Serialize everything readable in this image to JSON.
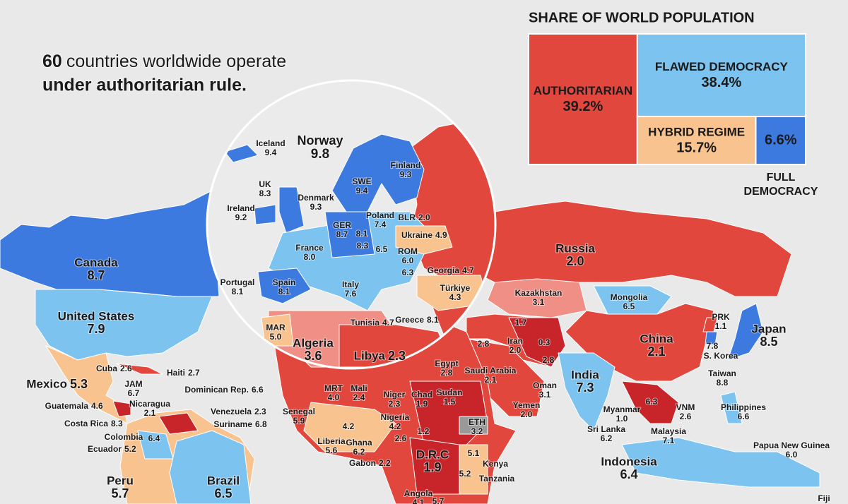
{
  "header": {
    "lede_number": "60",
    "lede_text": "countries worldwide operate under authoritarian rule."
  },
  "share": {
    "title": "SHARE OF WORLD POPULATION",
    "segments": [
      {
        "name": "AUTHORITARIAN",
        "value": {
          "value": 39.2,
          "label": "39.2%"
        },
        "color": "#e2473d"
      },
      {
        "name": "FLAWED DEMOCRACY",
        "value": {
          "value": 38.4,
          "label": "38.4%"
        },
        "color": "#7cc3f0"
      },
      {
        "name": "HYBRID REGIME",
        "value": {
          "value": 15.7,
          "label": "15.7%"
        },
        "color": "#f8c38e"
      },
      {
        "name": "FULL DEMOCRACY",
        "value": {
          "value": 6.6,
          "label": "6.6%"
        },
        "color": "#3d7ae0"
      }
    ]
  },
  "countries": [
    {
      "name": "Iceland",
      "score": 9.4
    },
    {
      "name": "Norway",
      "score": 9.8
    },
    {
      "name": "Finland",
      "score": 9.3
    },
    {
      "name": "UK",
      "score": 8.3
    },
    {
      "name": "SWE",
      "score": 9.4
    },
    {
      "name": "Denmark",
      "score": 9.3
    },
    {
      "name": "Ireland",
      "score": 9.2
    },
    {
      "name": "Poland",
      "score": 7.4
    },
    {
      "name": "BLR",
      "score": {
        "value": 2,
        "label": "2.0"
      }
    },
    {
      "name": "GER",
      "score": 8.7
    },
    {
      "name": null,
      "score": 8.1
    },
    {
      "name": "Ukraine",
      "score": 4.9
    },
    {
      "name": "France",
      "score": {
        "value": 8,
        "label": "8.0"
      }
    },
    {
      "name": null,
      "score": 8.3
    },
    {
      "name": null,
      "score": 6.5
    },
    {
      "name": "ROM",
      "score": {
        "value": 6,
        "label": "6.0"
      }
    },
    {
      "name": null,
      "score": 6.3
    },
    {
      "name": "Georgia",
      "score": 4.7
    },
    {
      "name": "Portugal",
      "score": 8.1
    },
    {
      "name": "Spain",
      "score": 8.1
    },
    {
      "name": "Italy",
      "score": 7.6
    },
    {
      "name": "Türkiye",
      "score": 4.3
    },
    {
      "name": "Tunisia",
      "score": 4.7
    },
    {
      "name": "Greece",
      "score": 8.1
    },
    {
      "name": "MAR",
      "score": {
        "value": 5,
        "label": "5.0"
      }
    },
    {
      "name": "Algeria",
      "score": 3.6
    },
    {
      "name": "Libya",
      "score": 2.3
    },
    {
      "name": "Russia",
      "score": {
        "value": 2,
        "label": "2.0"
      }
    },
    {
      "name": "Kazakhstan",
      "score": 3.1
    },
    {
      "name": "Mongolia",
      "score": 6.5
    },
    {
      "name": null,
      "score": 1.7
    },
    {
      "name": null,
      "score": 2.8
    },
    {
      "name": "Iran",
      "score": {
        "value": 2,
        "label": "2.0"
      }
    },
    {
      "name": null,
      "score": 0.3
    },
    {
      "name": null,
      "score": 2.8
    },
    {
      "name": "China",
      "score": 2.1
    },
    {
      "name": "PRK",
      "score": 1.1
    },
    {
      "name": "S. Korea",
      "score": 7.8
    },
    {
      "name": "Taiwan",
      "score": 8.8
    },
    {
      "name": "Japan",
      "score": 8.5
    },
    {
      "name": "Canada",
      "score": 8.7
    },
    {
      "name": "United States",
      "score": 7.9
    },
    {
      "name": "Mexico",
      "score": 5.3
    },
    {
      "name": "Cuba",
      "score": 2.6
    },
    {
      "name": "Haiti",
      "score": 2.7
    },
    {
      "name": "JAM",
      "score": 6.7
    },
    {
      "name": "Dominican Rep.",
      "score": 6.6
    },
    {
      "name": "Guatemala",
      "score": 4.6
    },
    {
      "name": "Nicaragua",
      "score": 2.1
    },
    {
      "name": "Venezuela",
      "score": 2.3
    },
    {
      "name": "Costa Rica",
      "score": 8.3
    },
    {
      "name": "Suriname",
      "score": 6.8
    },
    {
      "name": "Colombia",
      "score": 6.4
    },
    {
      "name": "Ecuador",
      "score": 5.2
    },
    {
      "name": "Peru",
      "score": 5.7
    },
    {
      "name": "Brazil",
      "score": 6.5
    },
    {
      "name": "Egypt",
      "score": 2.8
    },
    {
      "name": "Saudi Arabia",
      "score": 2.1
    },
    {
      "name": "Oman",
      "score": 3.1
    },
    {
      "name": "India",
      "score": 7.3
    },
    {
      "name": "Yemen",
      "score": {
        "value": 2,
        "label": "2.0"
      }
    },
    {
      "name": "MRT",
      "score": {
        "value": 4,
        "label": "4.0"
      }
    },
    {
      "name": "Mali",
      "score": 2.4
    },
    {
      "name": "Niger",
      "score": 2.3
    },
    {
      "name": "Chad",
      "score": 1.9
    },
    {
      "name": "Sudan",
      "score": 1.5
    },
    {
      "name": "Senegal",
      "score": 5.9
    },
    {
      "name": "Nigeria",
      "score": 4.2
    },
    {
      "name": null,
      "score": 4.2
    },
    {
      "name": null,
      "score": 1.2
    },
    {
      "name": "ETH",
      "score": 3.2
    },
    {
      "name": "Myanmar",
      "score": {
        "value": 1,
        "label": "1.0"
      }
    },
    {
      "name": null,
      "score": 6.3
    },
    {
      "name": "VNM",
      "score": 2.6
    },
    {
      "name": "Philippines",
      "score": 6.6
    },
    {
      "name": "Sri Lanka",
      "score": 6.2
    },
    {
      "name": "Malaysia",
      "score": 7.1
    },
    {
      "name": "Liberia",
      "score": 5.6
    },
    {
      "name": "Ghana",
      "score": 6.2
    },
    {
      "name": null,
      "score": 2.6
    },
    {
      "name": "D.R.C",
      "score": 1.9
    },
    {
      "name": "Kenya",
      "score": 5.1
    },
    {
      "name": "Tanzania",
      "score": 5.2
    },
    {
      "name": "Gabon",
      "score": 2.2
    },
    {
      "name": "Papua New Guinea",
      "score": {
        "value": 6,
        "label": "6.0"
      }
    },
    {
      "name": "Indonesia",
      "score": 6.4
    },
    {
      "name": "Angola",
      "score": 4.1
    },
    {
      "name": null,
      "score": 5.7
    },
    {
      "name": "Fiji",
      "score": null
    }
  ]
}
